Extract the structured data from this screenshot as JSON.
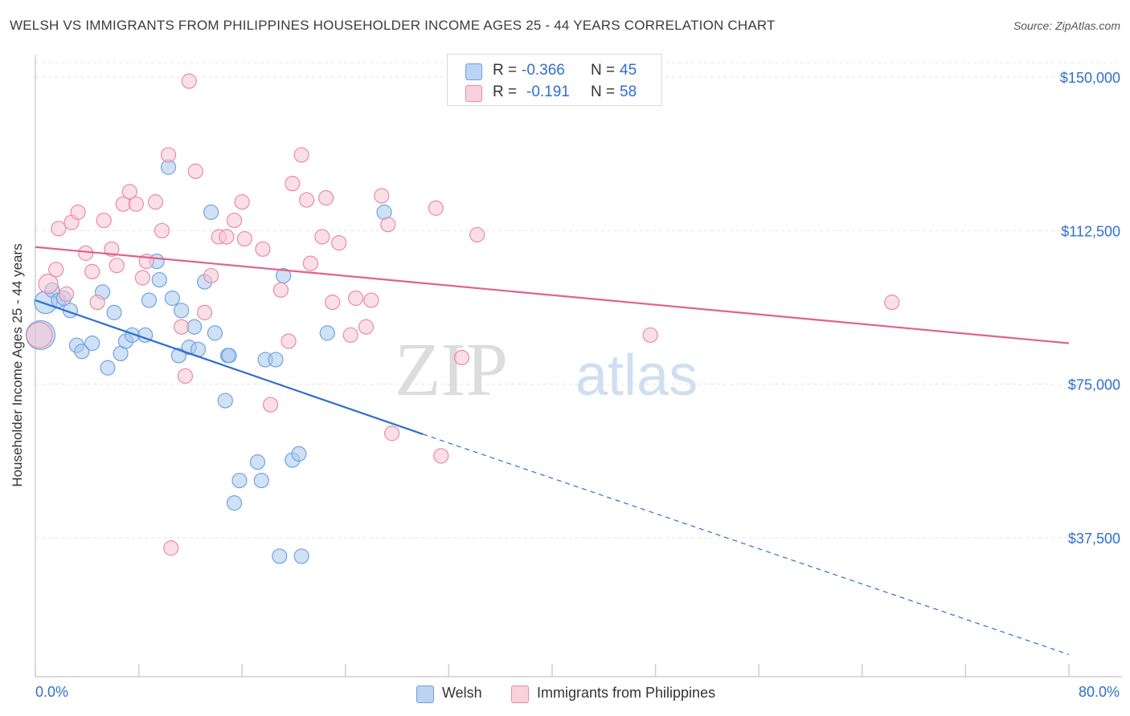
{
  "title": "WELSH VS IMMIGRANTS FROM PHILIPPINES HOUSEHOLDER INCOME AGES 25 - 44 YEARS CORRELATION CHART",
  "source": "Source: ZipAtlas.com",
  "watermark": {
    "zip": "ZIP",
    "atlas": "atlas"
  },
  "legend": {
    "rows": [
      {
        "r_label": "R =",
        "r_value": "-0.366",
        "n_label": "N =",
        "n_value": "45",
        "color": "#a9c8ef",
        "border": "#6f9fdc"
      },
      {
        "r_label": "R =",
        "r_value": "-0.191",
        "n_label": "N =",
        "n_value": "58",
        "color": "#f8c4d3",
        "border": "#e98aa7"
      }
    ]
  },
  "bottom_legend": {
    "welsh": "Welsh",
    "philippines": "Immigrants from Philippines"
  },
  "x_axis": {
    "min_label": "0.0%",
    "max_label": "80.0%"
  },
  "chart_data": {
    "type": "scatter",
    "title": "WELSH VS IMMIGRANTS FROM PHILIPPINES HOUSEHOLDER INCOME AGES 25 - 44 YEARS CORRELATION CHART",
    "xlabel": "",
    "ylabel": "Householder Income Ages 25 - 44 years",
    "xlim": [
      0,
      80
    ],
    "ylim": [
      10000,
      160000
    ],
    "y_ticks": [
      37500,
      75000,
      112500,
      150000
    ],
    "y_tick_labels": [
      "$37,500",
      "$75,000",
      "$112,500",
      "$150,000"
    ],
    "x_tick_labels": [
      "0.0%",
      "80.0%"
    ],
    "grid": "horizontal dashed",
    "legend_position": "top-center",
    "series": [
      {
        "name": "Welsh",
        "color": "#6fa3e0",
        "fill": "#aac8ef",
        "trend": {
          "x0": 0,
          "y0": 95500,
          "x1": 30,
          "y1": 62800,
          "dashed_to_x": 80,
          "dashed_to_y": 9000,
          "color": "#2d6fce"
        },
        "points": [
          [
            0.8,
            95000,
            14
          ],
          [
            0.4,
            87000,
            18
          ],
          [
            1.3,
            98000,
            9
          ],
          [
            1.8,
            95500,
            9
          ],
          [
            2.7,
            93000,
            9
          ],
          [
            2.2,
            96000,
            9
          ],
          [
            3.2,
            84500,
            9
          ],
          [
            3.6,
            83000,
            9
          ],
          [
            4.4,
            85000,
            9
          ],
          [
            5.6,
            79000,
            9
          ],
          [
            5.2,
            97500,
            9
          ],
          [
            6.1,
            92500,
            9
          ],
          [
            6.6,
            82500,
            9
          ],
          [
            7.0,
            85500,
            9
          ],
          [
            7.5,
            87000,
            9
          ],
          [
            8.5,
            87000,
            9
          ],
          [
            8.8,
            95500,
            9
          ],
          [
            9.6,
            100500,
            9
          ],
          [
            9.4,
            105000,
            9
          ],
          [
            10.3,
            128000,
            9
          ],
          [
            10.6,
            96000,
            9
          ],
          [
            11.1,
            82000,
            9
          ],
          [
            11.3,
            93000,
            9
          ],
          [
            11.9,
            84000,
            9
          ],
          [
            12.3,
            89000,
            9
          ],
          [
            12.6,
            83500,
            9
          ],
          [
            13.1,
            100000,
            9
          ],
          [
            13.6,
            117000,
            9
          ],
          [
            13.9,
            87500,
            9
          ],
          [
            14.7,
            71000,
            9
          ],
          [
            14.9,
            82000,
            9
          ],
          [
            15.4,
            46000,
            9
          ],
          [
            15.8,
            51500,
            9
          ],
          [
            17.2,
            56000,
            9
          ],
          [
            17.5,
            51500,
            9
          ],
          [
            17.8,
            81000,
            9
          ],
          [
            18.6,
            81000,
            9
          ],
          [
            18.9,
            33000,
            9
          ],
          [
            19.2,
            101500,
            9
          ],
          [
            19.9,
            56500,
            9
          ],
          [
            20.4,
            58000,
            9
          ],
          [
            20.6,
            33000,
            9
          ],
          [
            22.6,
            87500,
            9
          ],
          [
            27.0,
            117000,
            9
          ],
          [
            15.0,
            82000,
            9
          ]
        ]
      },
      {
        "name": "Immigrants from Philippines",
        "color": "#e98aa7",
        "fill": "#f8c4d3",
        "trend": {
          "x0": 0,
          "y0": 108500,
          "x1": 80,
          "y1": 85000,
          "color": "#e0628c"
        },
        "points": [
          [
            0.3,
            87000,
            16
          ],
          [
            1.0,
            99500,
            12
          ],
          [
            1.6,
            103000,
            9
          ],
          [
            1.8,
            113000,
            9
          ],
          [
            2.4,
            97000,
            9
          ],
          [
            2.8,
            114500,
            9
          ],
          [
            3.3,
            117000,
            9
          ],
          [
            3.9,
            107000,
            9
          ],
          [
            4.4,
            102500,
            9
          ],
          [
            4.8,
            95000,
            9
          ],
          [
            5.3,
            115000,
            9
          ],
          [
            5.9,
            108000,
            9
          ],
          [
            6.3,
            104000,
            9
          ],
          [
            6.8,
            119000,
            9
          ],
          [
            7.3,
            122000,
            9
          ],
          [
            7.8,
            119000,
            9
          ],
          [
            8.3,
            101000,
            9
          ],
          [
            8.6,
            105000,
            9
          ],
          [
            9.3,
            119500,
            9
          ],
          [
            9.8,
            112500,
            9
          ],
          [
            10.3,
            131000,
            9
          ],
          [
            10.5,
            35000,
            9
          ],
          [
            11.3,
            89000,
            9
          ],
          [
            11.6,
            77000,
            9
          ],
          [
            11.9,
            149000,
            9
          ],
          [
            12.4,
            127000,
            9
          ],
          [
            13.1,
            92500,
            9
          ],
          [
            13.6,
            101500,
            9
          ],
          [
            14.2,
            111000,
            9
          ],
          [
            14.8,
            111000,
            9
          ],
          [
            15.4,
            115000,
            9
          ],
          [
            16.0,
            119500,
            9
          ],
          [
            16.2,
            110500,
            9
          ],
          [
            17.6,
            108000,
            9
          ],
          [
            18.2,
            70000,
            9
          ],
          [
            19.0,
            98000,
            9
          ],
          [
            19.6,
            85500,
            9
          ],
          [
            19.9,
            124000,
            9
          ],
          [
            20.6,
            131000,
            9
          ],
          [
            21.0,
            120000,
            9
          ],
          [
            21.3,
            104500,
            9
          ],
          [
            22.2,
            111000,
            9
          ],
          [
            22.5,
            120500,
            9
          ],
          [
            23.0,
            95000,
            9
          ],
          [
            23.5,
            109500,
            9
          ],
          [
            24.4,
            87000,
            9
          ],
          [
            24.8,
            96000,
            9
          ],
          [
            25.6,
            89000,
            9
          ],
          [
            26.0,
            95500,
            9
          ],
          [
            26.8,
            121000,
            9
          ],
          [
            27.3,
            114000,
            9
          ],
          [
            27.6,
            63000,
            9
          ],
          [
            31.0,
            118000,
            9
          ],
          [
            31.4,
            57500,
            9
          ],
          [
            33.0,
            81500,
            9
          ],
          [
            34.2,
            111500,
            9
          ],
          [
            47.6,
            87000,
            9
          ],
          [
            66.3,
            95000,
            9
          ]
        ]
      }
    ]
  }
}
